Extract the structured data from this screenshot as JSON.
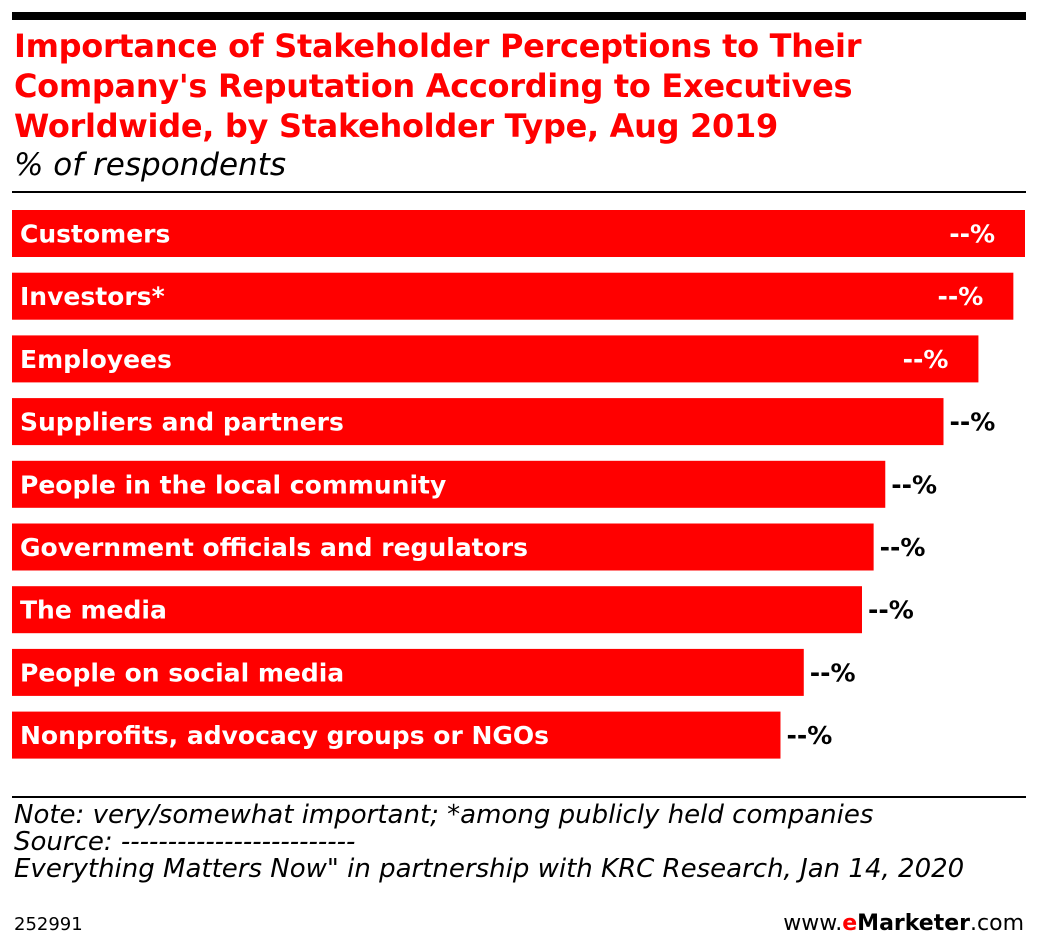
{
  "header": {
    "title": "Importance of Stakeholder Perceptions to Their Company's Reputation According to Executives Worldwide, by Stakeholder Type, Aug 2019",
    "subtitle": "% of respondents"
  },
  "chart_data": {
    "type": "bar",
    "orientation": "horizontal",
    "title": "Importance of Stakeholder Perceptions to Their Company's Reputation According to Executives Worldwide, by Stakeholder Type, Aug 2019",
    "subtitle": "% of respondents",
    "categories": [
      "Customers",
      "Investors*",
      "Employees",
      "Suppliers and partners",
      "People in the local community",
      "Government officials and regulators",
      "The media",
      "People on social media",
      "Nonprofits, advocacy groups or NGOs"
    ],
    "values": [
      87,
      86,
      83,
      80,
      75,
      74,
      73,
      68,
      66
    ],
    "value_labels": [
      "--%",
      "--%",
      "--%",
      "--%",
      "--%",
      "--%",
      "--%",
      "--%",
      "--%"
    ],
    "xlim": [
      0,
      87
    ],
    "grid": false,
    "legend": "none",
    "bar_color": "#ff0000"
  },
  "notes": {
    "note": "Note: very/somewhat important; *among publicly held companies",
    "source": "Source: -------------------------",
    "source_cont": "Everything Matters Now\" in partnership with KRC Research, Jan 14, 2020"
  },
  "footer": {
    "chart_id": "252991",
    "brand_prefix": "www.",
    "brand_e": "e",
    "brand_name": "Marketer",
    "brand_suffix": ".com"
  }
}
